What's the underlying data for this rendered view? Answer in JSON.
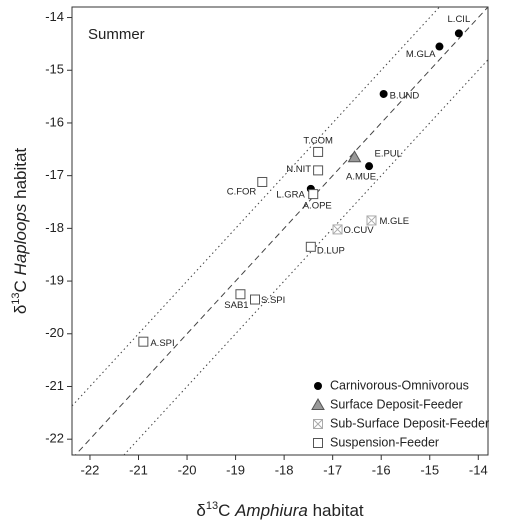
{
  "chart_data": {
    "type": "scatter",
    "title": "Summer",
    "xlabel": [
      "δ",
      "13",
      "C ",
      "Amphiura",
      " habitat"
    ],
    "ylabel": [
      "δ",
      "13",
      "C ",
      "Haploops",
      " habitat"
    ],
    "xlim": [
      -22.37,
      -13.8
    ],
    "ylim": [
      -22.3,
      -13.8
    ],
    "xticks": [
      -22,
      -21,
      -20,
      -19,
      -18,
      -17,
      -16,
      -15,
      -14
    ],
    "yticks": [
      -22,
      -21,
      -20,
      -19,
      -18,
      -17,
      -16,
      -15,
      -14
    ],
    "legend": "bottom-right",
    "series": [
      {
        "name": "Carnivorous-Omnivorous",
        "marker": "circle",
        "color": "#000000",
        "labels": [
          "L.CIL",
          "M.GLA",
          "B.UND",
          "A.MUE",
          "L.GRA"
        ],
        "x": [
          -14.4,
          -14.8,
          -15.95,
          -16.25,
          -17.45
        ],
        "y": [
          -14.3,
          -14.55,
          -15.45,
          -16.82,
          -17.25
        ]
      },
      {
        "name": "Surface Deposit-Feeder",
        "marker": "triangle",
        "color": "#999999",
        "labels": [
          "E.PUL"
        ],
        "x": [
          -16.55
        ],
        "y": [
          -16.65
        ]
      },
      {
        "name": "Sub-Surface Deposit-Feeder",
        "marker": "crossed-square",
        "color": "#aaaaaa",
        "labels": [
          "M.GLE",
          "O.CUV"
        ],
        "x": [
          -16.2,
          -16.9
        ],
        "y": [
          -17.85,
          -18.02
        ]
      },
      {
        "name": "Suspension-Feeder",
        "marker": "square",
        "color": "#555555",
        "labels": [
          "T.COM",
          "N.NIT",
          "C.FOR",
          "A.OPE",
          "D.LUP",
          "SAB1",
          "S.SPI",
          "A.SPI"
        ],
        "x": [
          -17.3,
          -17.3,
          -18.45,
          -17.4,
          -17.45,
          -18.9,
          -18.6,
          -20.9
        ],
        "y": [
          -16.55,
          -16.9,
          -17.12,
          -17.35,
          -18.35,
          -19.25,
          -19.35,
          -20.15
        ]
      }
    ]
  }
}
